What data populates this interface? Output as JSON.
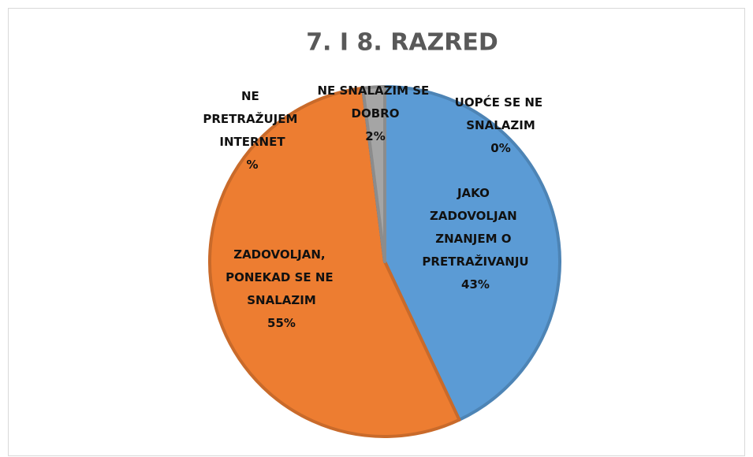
{
  "chart_data": {
    "type": "pie",
    "title": "7. I 8. RAZRED",
    "categories": [
      "UOPĆE SE NE SNALAZIM",
      "JAKO ZADOVOLJAN ZNANJEM O PRETRAŽIVANJU",
      "ZADOVOLJAN, PONEKAD SE NE SNALAZIM",
      "NE PRETRAŽUJEM INTERNET",
      "NE SNALAZIM SE DOBRO"
    ],
    "values": [
      0,
      43,
      55,
      0,
      2
    ],
    "value_labels": [
      "0%",
      "43%",
      "55%",
      "%",
      "2%"
    ],
    "colors": [
      "#ffc000",
      "#5b9bd5",
      "#ed7d31",
      "#4472c4",
      "#a5a5a5"
    ]
  }
}
